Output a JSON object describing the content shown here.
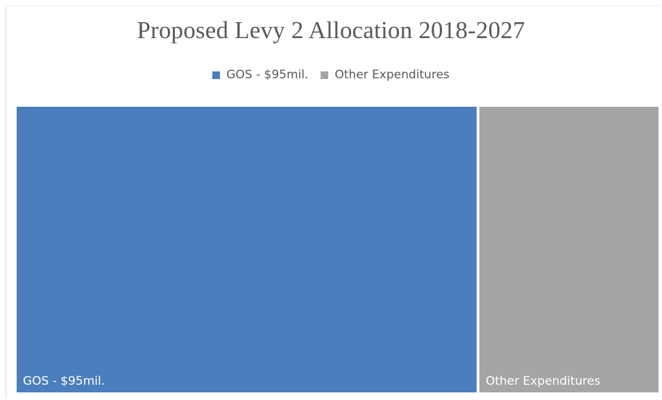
{
  "chart_data": {
    "type": "treemap",
    "title": "Proposed Levy 2 Allocation 2018-2027",
    "series": [
      {
        "name": "GOS - $95mil.",
        "value": 95,
        "color": "#4b7ebd"
      },
      {
        "name": "Other Expenditures",
        "value": 37,
        "color": "#a5a5a5"
      }
    ],
    "legend": {
      "position": "top"
    }
  }
}
